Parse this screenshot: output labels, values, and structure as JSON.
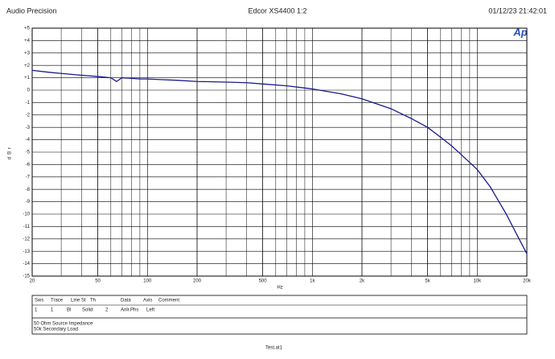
{
  "header": {
    "left": "Audio Precision",
    "center": "Edcor XS4400 1:2",
    "right": "01/12/23 21:42:01",
    "logo": "Ap"
  },
  "chart_data": {
    "type": "line",
    "xlabel": "Hz",
    "ylabel": "dBr",
    "xscale": "log",
    "grid": true,
    "minor_grid": true,
    "xlim": [
      20,
      20000
    ],
    "ylim": [
      -15,
      5
    ],
    "xticks": [
      20,
      50,
      100,
      200,
      500,
      {
        "value": 1000,
        "label": "1k"
      },
      {
        "value": 2000,
        "label": "2k"
      },
      {
        "value": 5000,
        "label": "5k"
      },
      {
        "value": 10000,
        "label": "10k"
      },
      {
        "value": 20000,
        "label": "20k"
      }
    ],
    "yticks": [
      {
        "value": 5,
        "label": "+5"
      },
      {
        "value": 4,
        "label": "+4"
      },
      {
        "value": 3,
        "label": "+3"
      },
      {
        "value": 2,
        "label": "+2"
      },
      {
        "value": 1,
        "label": "+1"
      },
      0,
      -1,
      -2,
      -3,
      -4,
      -5,
      -6,
      -7,
      -8,
      -9,
      -10,
      -11,
      -12,
      -13,
      -14,
      -15
    ],
    "series": [
      {
        "color": "#1a1a8c",
        "x": [
          20,
          25,
          30,
          40,
          50,
          60,
          65,
          70,
          80,
          90,
          100,
          120,
          150,
          200,
          300,
          400,
          500,
          700,
          1000,
          1500,
          2000,
          3000,
          4000,
          5000,
          6000,
          7000,
          8000,
          10000,
          12000,
          15000,
          17000,
          20000
        ],
        "values": [
          1.6,
          1.45,
          1.35,
          1.2,
          1.1,
          1.0,
          0.7,
          1.0,
          0.95,
          0.9,
          0.9,
          0.85,
          0.8,
          0.7,
          0.65,
          0.6,
          0.5,
          0.35,
          0.1,
          -0.3,
          -0.7,
          -1.5,
          -2.3,
          -3.0,
          -3.8,
          -4.5,
          -5.2,
          -6.4,
          -7.8,
          -10.0,
          -11.4,
          -13.2
        ]
      }
    ]
  },
  "sweep_table": {
    "headers": [
      "Sws",
      "Trace",
      "Line St",
      "Th",
      "Data",
      "Axis",
      "Comment"
    ],
    "rows": [
      [
        "1",
        "1",
        "Bl",
        "Solid",
        "2",
        "Anlr.Phs",
        "Left"
      ]
    ]
  },
  "notes": [
    "50 Ohm Source Impedance",
    "50k Secondary Load"
  ],
  "footer": "Test.at1"
}
